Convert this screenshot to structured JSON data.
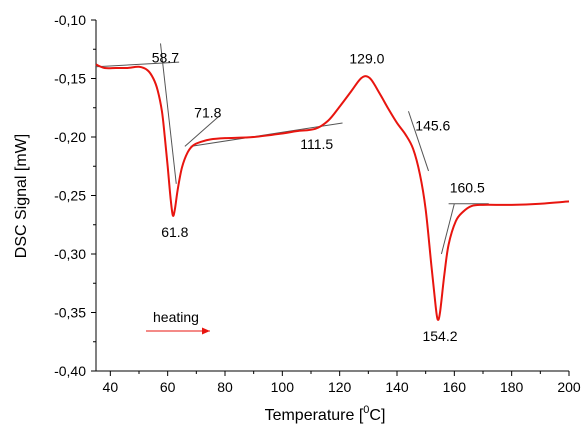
{
  "colors": {
    "curve": "#e8150f",
    "axis": "#000000",
    "tangent": "#555555",
    "arrow": "#e8150f"
  },
  "chart_data": {
    "type": "line",
    "title": "",
    "xlabel": "Temperature [",
    "xlabel_sup": "0",
    "xlabel_end": "C]",
    "ylabel": "DSC Signal [mW]",
    "xlim": [
      35,
      200
    ],
    "ylim": [
      -0.4,
      -0.1
    ],
    "x_ticks": [
      40,
      60,
      80,
      100,
      120,
      140,
      160,
      180,
      200
    ],
    "x_tick_labels": [
      "40",
      "60",
      "80",
      "100",
      "120",
      "140",
      "160",
      "180",
      "200"
    ],
    "y_ticks": [
      -0.1,
      -0.15,
      -0.2,
      -0.25,
      -0.3,
      -0.35,
      -0.4
    ],
    "y_tick_labels": [
      "-0,10",
      "-0,15",
      "-0,20",
      "-0,25",
      "-0,30",
      "-0,35",
      "-0,40"
    ],
    "grid": false,
    "series": [
      {
        "x": [
          35,
          38,
          42,
          46,
          50,
          53,
          55,
          56.5,
          58,
          59,
          60,
          61,
          61.8,
          62.5,
          63.5,
          65,
          67,
          69,
          71.8,
          75,
          80,
          90,
          100,
          105,
          111.5,
          116,
          120,
          124,
          127,
          129,
          131,
          134,
          137,
          140,
          143,
          145.6,
          148,
          150,
          152,
          153.5,
          154.2,
          155,
          156.5,
          158,
          160.5,
          163,
          166,
          170,
          180,
          190,
          200
        ],
        "y": [
          -0.138,
          -0.141,
          -0.141,
          -0.141,
          -0.14,
          -0.143,
          -0.15,
          -0.16,
          -0.178,
          -0.2,
          -0.225,
          -0.252,
          -0.267,
          -0.262,
          -0.245,
          -0.226,
          -0.213,
          -0.207,
          -0.204,
          -0.202,
          -0.201,
          -0.2,
          -0.197,
          -0.195,
          -0.193,
          -0.186,
          -0.174,
          -0.161,
          -0.151,
          -0.148,
          -0.151,
          -0.163,
          -0.176,
          -0.188,
          -0.198,
          -0.21,
          -0.232,
          -0.262,
          -0.31,
          -0.345,
          -0.356,
          -0.35,
          -0.318,
          -0.292,
          -0.272,
          -0.264,
          -0.259,
          -0.258,
          -0.258,
          -0.257,
          -0.255
        ]
      }
    ],
    "tangent_lines": [
      {
        "x": [
          35,
          64
        ],
        "y": [
          -0.14,
          -0.136
        ]
      },
      {
        "x": [
          57.5,
          63
        ],
        "y": [
          -0.12,
          -0.24
        ]
      },
      {
        "x": [
          66,
          78
        ],
        "y": [
          -0.208,
          -0.182
        ]
      },
      {
        "x": [
          68,
          121
        ],
        "y": [
          -0.208,
          -0.188
        ]
      },
      {
        "x": [
          144,
          151
        ],
        "y": [
          -0.178,
          -0.229
        ]
      },
      {
        "x": [
          155.5,
          160
        ],
        "y": [
          -0.3,
          -0.257
        ]
      },
      {
        "x": [
          158,
          172
        ],
        "y": [
          -0.257,
          -0.257
        ]
      }
    ],
    "annotations": [
      {
        "text": "58.7",
        "x": 59.2,
        "y": -0.132
      },
      {
        "text": "61.8",
        "x": 62.5,
        "y": -0.281
      },
      {
        "text": "71.8",
        "x": 74.0,
        "y": -0.179
      },
      {
        "text": "111.5",
        "x": 112.0,
        "y": -0.206
      },
      {
        "text": "129.0",
        "x": 129.5,
        "y": -0.133
      },
      {
        "text": "145.6",
        "x": 152.5,
        "y": -0.19
      },
      {
        "text": "160.5",
        "x": 164.5,
        "y": -0.243
      },
      {
        "text": "154.2",
        "x": 155.0,
        "y": -0.37
      }
    ],
    "heating_label": "heating"
  }
}
